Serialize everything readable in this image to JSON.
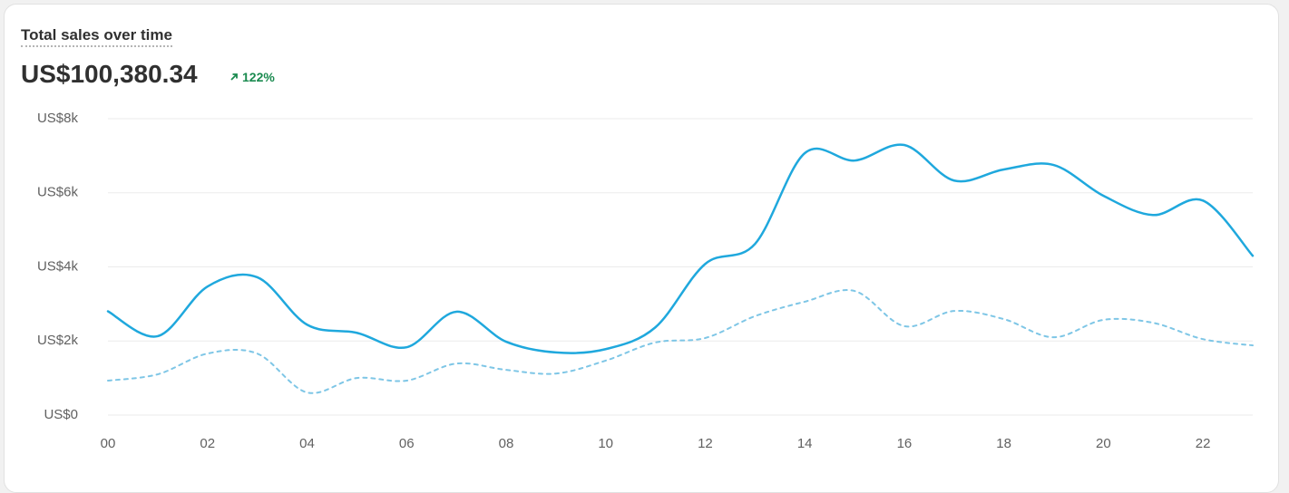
{
  "chart_data": {
    "type": "line",
    "title": "Total sales over time",
    "total": "US$100,380.34",
    "change": "122%",
    "categories": [
      "00",
      null,
      "02",
      null,
      "04",
      null,
      "06",
      null,
      "08",
      null,
      "10",
      null,
      "12",
      null,
      "14",
      null,
      "16",
      null,
      "18",
      null,
      "20",
      null,
      "22",
      null
    ],
    "series": [
      {
        "color": "#1fa8dd",
        "style": "solid",
        "values": [
          2800,
          2130,
          3470,
          3720,
          2440,
          2220,
          1830,
          2790,
          1980,
          1690,
          1780,
          2370,
          4080,
          4620,
          7070,
          6870,
          7290,
          6330,
          6630,
          6750,
          5920,
          5400,
          5790,
          4300
        ]
      },
      {
        "color": "#7ec6e6",
        "style": "dashed",
        "values": [
          930,
          1100,
          1660,
          1660,
          610,
          1000,
          930,
          1390,
          1220,
          1120,
          1470,
          1960,
          2080,
          2670,
          3060,
          3350,
          2400,
          2810,
          2590,
          2100,
          2570,
          2490,
          2050,
          1880
        ]
      }
    ],
    "ylim": [
      0,
      8000
    ],
    "yticks": [
      {
        "value": 0,
        "label": "US$0"
      },
      {
        "value": 2000,
        "label": "US$2k"
      },
      {
        "value": 4000,
        "label": "US$4k"
      },
      {
        "value": 6000,
        "label": "US$6k"
      },
      {
        "value": 8000,
        "label": "US$8k"
      }
    ],
    "grid": true
  }
}
